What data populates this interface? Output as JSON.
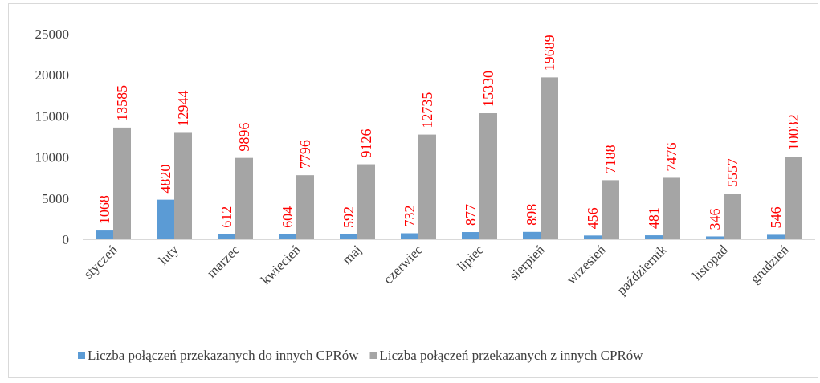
{
  "chart_data": {
    "type": "bar",
    "categories": [
      "styczeń",
      "luty",
      "marzec",
      "kwiecień",
      "maj",
      "czerwiec",
      "lipiec",
      "sierpień",
      "wrzesień",
      "październik",
      "listopad",
      "grudzień"
    ],
    "series": [
      {
        "name": "Liczba połączeń przekazanych do innych CPRów",
        "color": "#5b9bd5",
        "values": [
          1068,
          4820,
          612,
          604,
          592,
          732,
          877,
          898,
          456,
          481,
          346,
          546
        ]
      },
      {
        "name": "Liczba połączeń przekazanych z innych CPRów",
        "color": "#a5a5a5",
        "values": [
          13585,
          12944,
          9896,
          7796,
          9126,
          12735,
          15330,
          19689,
          7188,
          7476,
          5557,
          10032
        ]
      }
    ],
    "ylim": [
      0,
      25000
    ],
    "yticks": [
      0,
      5000,
      10000,
      15000,
      20000,
      25000
    ],
    "grid": false,
    "legend": "bottom"
  }
}
